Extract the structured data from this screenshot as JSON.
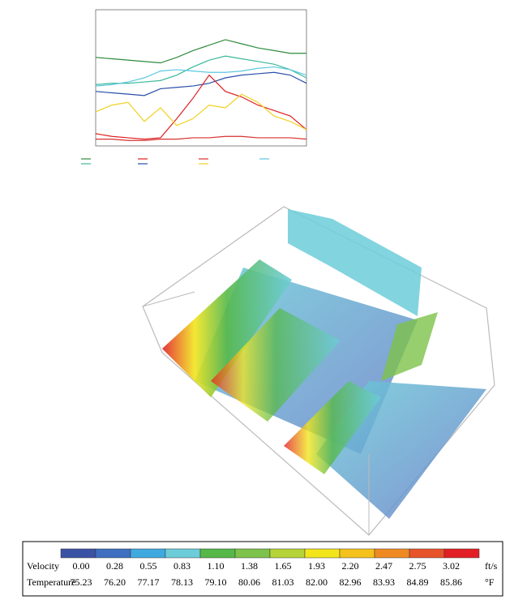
{
  "chart_data": {
    "type": "line",
    "x": [
      0,
      2,
      4,
      6,
      8,
      10,
      12,
      14,
      16,
      18,
      20,
      22,
      24,
      26
    ],
    "xlim": [
      0,
      26
    ],
    "ylim": [
      0,
      100
    ],
    "series": [
      {
        "color": "#2e8b3e",
        "values": [
          65,
          64,
          63,
          62,
          61,
          65,
          70,
          74,
          78,
          75,
          72,
          70,
          68,
          68
        ]
      },
      {
        "color": "#3cb89a",
        "values": [
          45,
          46,
          46,
          47,
          48,
          52,
          58,
          63,
          66,
          64,
          62,
          60,
          56,
          50
        ]
      },
      {
        "color": "#5cc8e0",
        "values": [
          44,
          45,
          47,
          50,
          55,
          56,
          55,
          54,
          54,
          55,
          57,
          58,
          56,
          52
        ]
      },
      {
        "color": "#2a4fa8",
        "values": [
          40,
          39,
          38,
          37,
          42,
          43,
          44,
          46,
          50,
          52,
          53,
          54,
          52,
          46
        ]
      },
      {
        "color": "#e02020",
        "values": [
          9,
          7,
          6,
          5,
          6,
          20,
          35,
          52,
          40,
          36,
          30,
          26,
          22,
          12
        ]
      },
      {
        "color": "#f0d020",
        "values": [
          25,
          30,
          32,
          18,
          28,
          15,
          20,
          30,
          28,
          38,
          32,
          22,
          18,
          12
        ]
      },
      {
        "color": "#d83030",
        "values": [
          5,
          5,
          4,
          4,
          5,
          5,
          6,
          6,
          7,
          7,
          6,
          6,
          6,
          5
        ]
      }
    ]
  },
  "legend": {
    "colorbar": [
      "#3a53a4",
      "#3f6fc0",
      "#3fa9e0",
      "#6ccdd9",
      "#55b848",
      "#7dc24a",
      "#b6d437",
      "#f2e51c",
      "#f5c21b",
      "#ef8a22",
      "#e8542a",
      "#e31f26"
    ],
    "rows": [
      {
        "label": "Velocity",
        "values": [
          "0.00",
          "0.28",
          "0.55",
          "0.83",
          "1.10",
          "1.38",
          "1.65",
          "1.93",
          "2.20",
          "2.47",
          "2.75",
          "3.02"
        ],
        "unit": "ft/s"
      },
      {
        "label": "Temperature",
        "values": [
          "75.23",
          "76.20",
          "77.17",
          "78.13",
          "79.10",
          "80.06",
          "81.03",
          "82.00",
          "82.96",
          "83.93",
          "84.89",
          "85.86"
        ],
        "unit": "°F"
      }
    ]
  }
}
